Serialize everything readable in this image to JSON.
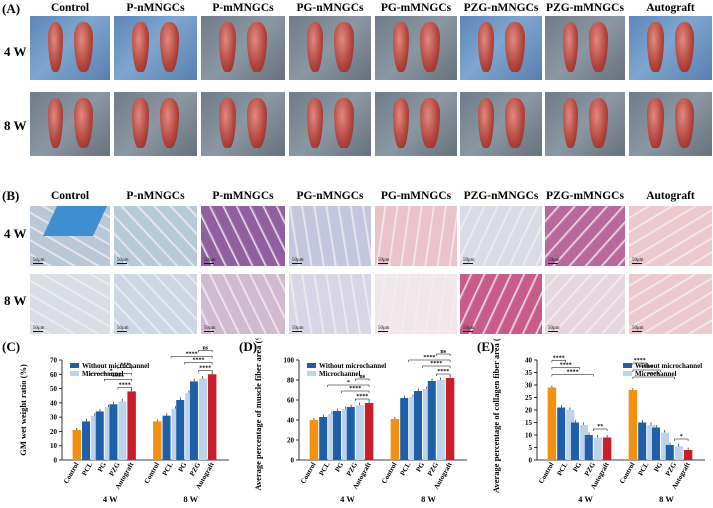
{
  "panelA": {
    "letter": "(A)",
    "columns": [
      "Control",
      "P-nMNGCs",
      "P-mMNGCs",
      "PG-nMNGCs",
      "PG-mMNGCs",
      "PZG-nMNGCs",
      "PZG-mMNGCs",
      "Autograft"
    ],
    "rows": [
      "4 W",
      "8 W"
    ]
  },
  "panelB": {
    "letter": "(B)",
    "columns": [
      "Control",
      "P-nMNGCs",
      "P-mMNGCs",
      "PG-nMNGCs",
      "PG-mMNGCs",
      "PZG-nMNGCs",
      "PZG-mMNGCs",
      "Autograft"
    ],
    "rows": [
      "4 W",
      "8 W"
    ],
    "scale_label": "50μm",
    "colors": {
      "row4": [
        "#b9c7d6",
        "#b7cad8",
        "#8f5f9f",
        "#c3c6dc",
        "#e9c2cb",
        "#d9dbe6",
        "#b8689c",
        "#ecc8cf"
      ],
      "row8": [
        "#d8dde6",
        "#cdd6e4",
        "#d1b9cf",
        "#d8d6e6",
        "#f1e6ea",
        "#c95b8a",
        "#e8d6de",
        "#ecc8cf"
      ]
    }
  },
  "chart_data": [
    {
      "type": "bar",
      "letter": "(C)",
      "ylabel": "GM wet weight ratio (%)",
      "ylim": [
        0,
        70
      ],
      "yticks": [
        0,
        10,
        20,
        30,
        40,
        50,
        60,
        70
      ],
      "groups": [
        "4 W",
        "8 W"
      ],
      "categories": [
        "Control",
        "PCL",
        "PG",
        "PZG",
        "Autograft"
      ],
      "series": [
        {
          "name": "Without microchannel",
          "values_4W": [
            null,
            27,
            34,
            39,
            null
          ],
          "values_8W": [
            null,
            31,
            42,
            55,
            null
          ]
        },
        {
          "name": "Microchannel",
          "values_4W": [
            null,
            31,
            37,
            41,
            null
          ],
          "values_8W": [
            null,
            36,
            47,
            57,
            null
          ]
        }
      ],
      "control": {
        "4W": 21,
        "8W": 27
      },
      "autograft": {
        "4W": 48,
        "8W": 60
      },
      "significance": [
        "****",
        "****",
        "*",
        "***",
        "****",
        "****",
        "****",
        "ns"
      ],
      "legend": "top-left",
      "colors": {
        "without": "#1f5fa7",
        "micro": "#bcd3ea",
        "control": "#f29111",
        "autograft": "#c7202a"
      }
    },
    {
      "type": "bar",
      "letter": "(D)",
      "ylabel": "Average percentage of muscle fiber area (%)",
      "ylim": [
        0,
        100
      ],
      "yticks": [
        0,
        20,
        40,
        60,
        80,
        100
      ],
      "groups": [
        "4 W",
        "8 W"
      ],
      "categories": [
        "Control",
        "PCL",
        "PG",
        "PZG",
        "Autograft"
      ],
      "series": [
        {
          "name": "Without microchannel",
          "values_4W": [
            null,
            43,
            49,
            53,
            null
          ],
          "values_8W": [
            null,
            62,
            69,
            79,
            null
          ]
        },
        {
          "name": "Microchannel",
          "values_4W": [
            null,
            46,
            51,
            55,
            null
          ],
          "values_8W": [
            null,
            63,
            71,
            80,
            null
          ]
        }
      ],
      "control": {
        "4W": 40,
        "8W": 41
      },
      "autograft": {
        "4W": 57,
        "8W": 82
      },
      "significance": [
        "****",
        "****",
        "*",
        "ns",
        "****",
        "****",
        "****",
        "ns"
      ],
      "legend": "top-left",
      "colors": {
        "without": "#1f5fa7",
        "micro": "#bcd3ea",
        "control": "#f29111",
        "autograft": "#c7202a"
      }
    },
    {
      "type": "bar",
      "letter": "(E)",
      "ylabel": "Average percentage of collagen fiber area (%)",
      "ylim": [
        0,
        40
      ],
      "yticks": [
        0,
        5,
        10,
        15,
        20,
        25,
        30,
        35,
        40
      ],
      "groups": [
        "4 W",
        "8 W"
      ],
      "categories": [
        "Control",
        "PCL",
        "PG",
        "PZG",
        "Autograft"
      ],
      "series": [
        {
          "name": "Without microchannel",
          "values_4W": [
            null,
            21,
            15,
            10,
            null
          ],
          "values_8W": [
            null,
            15,
            13,
            6,
            null
          ]
        },
        {
          "name": "Microchannel",
          "values_4W": [
            null,
            20,
            14,
            9,
            null
          ],
          "values_8W": [
            null,
            14,
            11,
            5.5,
            null
          ]
        }
      ],
      "control": {
        "4W": 29,
        "8W": 28
      },
      "autograft": {
        "4W": 9,
        "8W": 4
      },
      "significance": [
        "****",
        "****",
        "****",
        "**",
        "****",
        "****",
        "****",
        "*"
      ],
      "legend": "top-right",
      "colors": {
        "without": "#1f5fa7",
        "micro": "#bcd3ea",
        "control": "#f29111",
        "autograft": "#c7202a"
      }
    }
  ]
}
